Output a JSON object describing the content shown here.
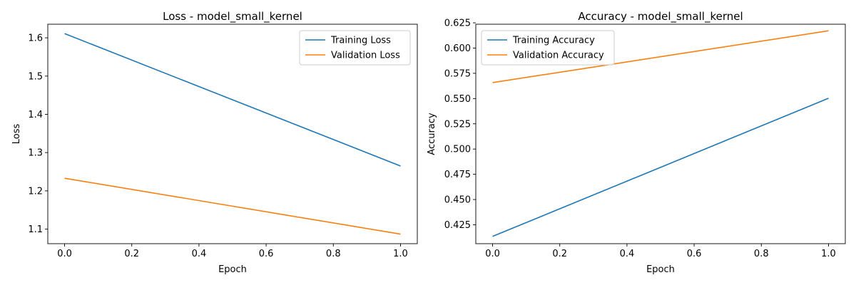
{
  "chart_data": [
    {
      "type": "line",
      "title": "Loss - model_small_kernel",
      "xlabel": "Epoch",
      "ylabel": "Loss",
      "xlim": [
        -0.05,
        1.05
      ],
      "ylim": [
        1.062,
        1.6355
      ],
      "xticks": [
        0.0,
        0.2,
        0.4,
        0.6,
        0.8,
        1.0
      ],
      "xtick_labels": [
        "0.0",
        "0.2",
        "0.4",
        "0.6",
        "0.8",
        "1.0"
      ],
      "yticks": [
        1.1,
        1.2,
        1.3,
        1.4,
        1.5,
        1.6
      ],
      "ytick_labels": [
        "1.1",
        "1.2",
        "1.3",
        "1.4",
        "1.5",
        "1.6"
      ],
      "x": [
        0,
        1
      ],
      "series": [
        {
          "name": "Training Loss",
          "values": [
            1.611,
            1.265
          ],
          "color": "#1f77b4"
        },
        {
          "name": "Validation Loss",
          "values": [
            1.233,
            1.087
          ],
          "color": "#ff7f0e"
        }
      ],
      "grid": false,
      "legend": "top-right"
    },
    {
      "type": "line",
      "title": "Accuracy - model_small_kernel",
      "xlabel": "Epoch",
      "ylabel": "Accuracy",
      "xlim": [
        -0.05,
        1.05
      ],
      "ylim": [
        0.4063,
        0.6236
      ],
      "xticks": [
        0.0,
        0.2,
        0.4,
        0.6,
        0.8,
        1.0
      ],
      "xtick_labels": [
        "0.0",
        "0.2",
        "0.4",
        "0.6",
        "0.8",
        "1.0"
      ],
      "yticks": [
        0.425,
        0.45,
        0.475,
        0.5,
        0.525,
        0.55,
        0.575,
        0.6,
        0.625
      ],
      "ytick_labels": [
        "0.425",
        "0.450",
        "0.475",
        "0.500",
        "0.525",
        "0.550",
        "0.575",
        "0.600",
        "0.625"
      ],
      "x": [
        0,
        1
      ],
      "series": [
        {
          "name": "Training Accuracy",
          "values": [
            0.4135,
            0.5503
          ],
          "color": "#1f77b4"
        },
        {
          "name": "Validation Accuracy",
          "values": [
            0.5658,
            0.6171
          ],
          "color": "#ff7f0e"
        }
      ],
      "grid": false,
      "legend": "top-left"
    }
  ]
}
